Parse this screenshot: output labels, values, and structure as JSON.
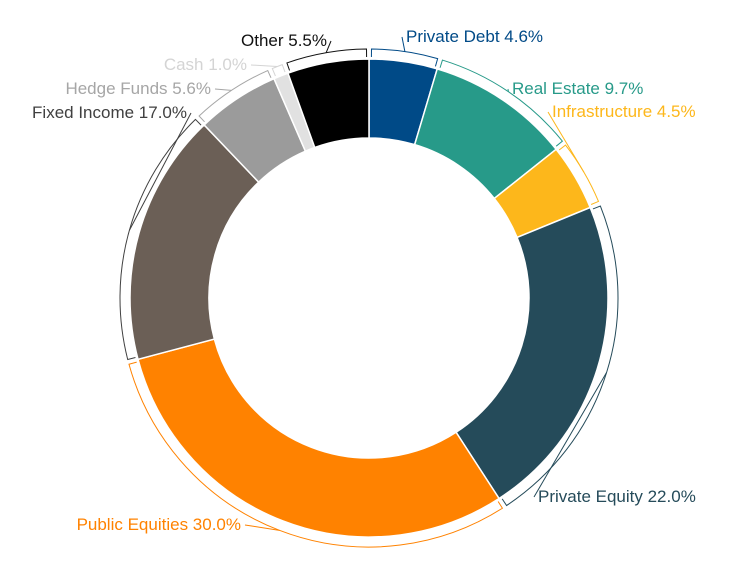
{
  "chart_data": {
    "type": "pie",
    "variant": "donut",
    "title": "",
    "legend": "none",
    "slices": [
      {
        "label": "Private Debt 4.6%",
        "value": 4.6,
        "color": "#004a87"
      },
      {
        "label": "Real Estate 9.7%",
        "value": 9.7,
        "color": "#279a89"
      },
      {
        "label": "Infrastructure 4.5%",
        "value": 4.5,
        "color": "#fdb71b"
      },
      {
        "label": "Private Equity 22.0%",
        "value": 22.0,
        "color": "#254b5a"
      },
      {
        "label": "Public Equities 30.0%",
        "value": 30.0,
        "color": "#ff8200"
      },
      {
        "label": "Fixed Income 17.0%",
        "value": 17.0,
        "color": "#6b5f56"
      },
      {
        "label": "Hedge Funds 5.6%",
        "value": 5.6,
        "color": "#9b9b9b"
      },
      {
        "label": "Cash 1.0%",
        "value": 1.0,
        "color": "#e1e1e1"
      },
      {
        "label": "Other 5.5%",
        "value": 5.5,
        "color": "#000000"
      }
    ]
  }
}
